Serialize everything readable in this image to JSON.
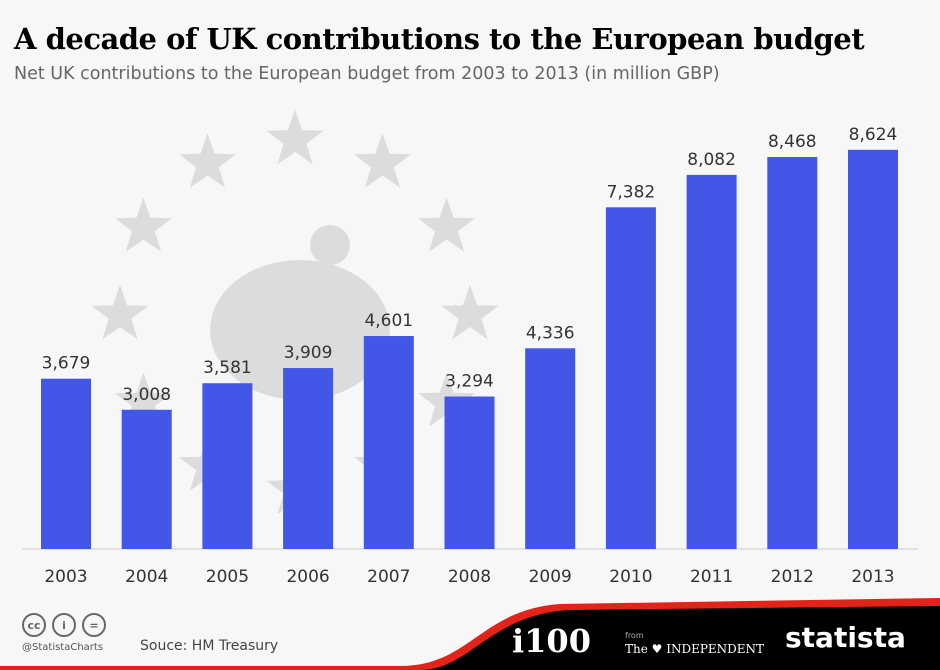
{
  "title": "A decade of UK contributions to the European budget",
  "subtitle": "Net UK contributions to the European budget from 2003 to 2013 (in million GBP)",
  "chart_data": {
    "type": "bar",
    "title": "A decade of UK contributions to the European budget",
    "subtitle": "Net UK contributions to the European budget from 2003 to 2013 (in million GBP)",
    "categories": [
      "2003",
      "2004",
      "2005",
      "2006",
      "2007",
      "2008",
      "2009",
      "2010",
      "2011",
      "2012",
      "2013"
    ],
    "values": [
      3679,
      3008,
      3581,
      3909,
      4601,
      3294,
      4336,
      7382,
      8082,
      8468,
      8624
    ],
    "labels": [
      "3,679",
      "3,008",
      "3,581",
      "3,909",
      "4,601",
      "3,294",
      "4,336",
      "7,382",
      "8,082",
      "8,468",
      "8,624"
    ],
    "ylim": [
      0,
      9700
    ],
    "grid": false,
    "bar_color": "#4256e8"
  },
  "footer": {
    "cc_icons": [
      "cc",
      "by",
      "="
    ],
    "handle": "@StatistaCharts",
    "source": "Souce: HM Treasury",
    "i100": "i100",
    "from": "from",
    "independent": "The ♥ INDEPENDENT",
    "statista": "statista"
  }
}
